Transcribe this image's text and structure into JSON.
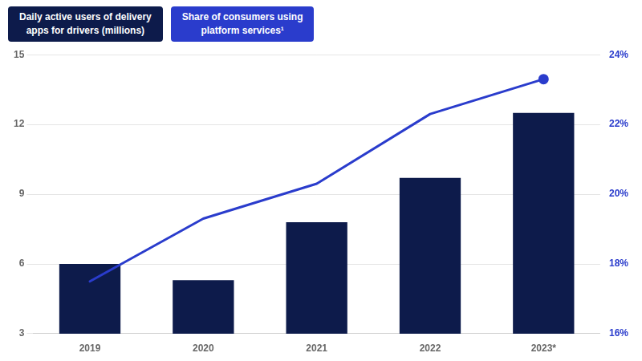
{
  "chart_data": {
    "type": "bar",
    "categories": [
      "2019",
      "2020",
      "2021",
      "2022",
      "2023*"
    ],
    "series": [
      {
        "name": "Daily active users of delivery\napps for drivers (millions)",
        "type": "bar",
        "color": "#0d1b4b",
        "values": [
          6.0,
          5.3,
          7.8,
          9.7,
          12.5
        ]
      },
      {
        "name": "Share of consumers using\nplatform services¹",
        "type": "line",
        "color": "#2a3ccc",
        "axis": "y2",
        "values": [
          17.5,
          19.3,
          20.3,
          22.3,
          23.3
        ]
      }
    ],
    "ylim": [
      3,
      15
    ],
    "yticks": [
      3,
      6,
      9,
      12,
      15
    ],
    "y2lim": [
      16,
      24
    ],
    "y2ticks": [
      {
        "value": 16,
        "label": "16%"
      },
      {
        "value": 18,
        "label": "18%"
      },
      {
        "value": 20,
        "label": "20%"
      },
      {
        "value": 22,
        "label": "22%"
      },
      {
        "value": 24,
        "label": "24%"
      }
    ],
    "grid": true,
    "legend": "upper left"
  }
}
